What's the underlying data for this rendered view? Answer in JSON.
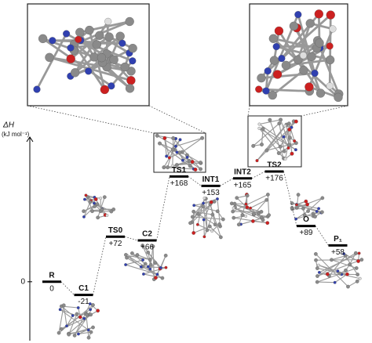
{
  "chart_data": {
    "type": "energy-profile",
    "ylabel": "ΔH",
    "yunit": "(kJ mol⁻¹)",
    "categories": [
      "R",
      "C1",
      "TS0",
      "C2",
      "TS1",
      "INT1",
      "INT2",
      "TS2",
      "O",
      "P₁"
    ],
    "values": [
      0,
      -21,
      72,
      66,
      168,
      153,
      165,
      176,
      89,
      58
    ],
    "value_labels": [
      "0",
      "-21",
      "+72",
      "+66",
      "+168",
      "+153",
      "+165",
      "+176",
      "+89",
      "+58"
    ],
    "ylim": [
      -94,
      231
    ],
    "yticks": [
      0
    ],
    "color": "#000000"
  }
}
